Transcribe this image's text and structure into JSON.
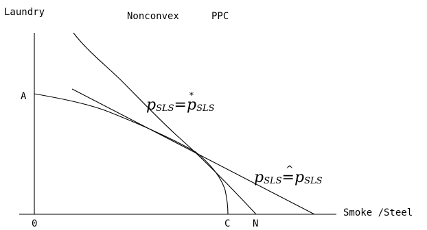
{
  "title": {
    "left": "Nonconvex",
    "right": "PPC"
  },
  "axes": {
    "y_label": "Laundry",
    "x_label": "Smoke /Steel",
    "origin_label": "0"
  },
  "points": {
    "a": "A",
    "c": "C",
    "n": "N"
  },
  "price_lines": {
    "star": {
      "lhs_p": "p",
      "lhs_sub": "SLS",
      "eq": "=",
      "rhs_p": "p",
      "rhs_sub": "SLS",
      "mark": "*"
    },
    "hat": {
      "lhs_p": "p",
      "lhs_sub": "SLS",
      "eq": "=",
      "rhs_p": "p",
      "rhs_sub": "SLS",
      "mark": "^"
    }
  },
  "colors": {
    "ink": "#000000",
    "background": "#ffffff"
  }
}
